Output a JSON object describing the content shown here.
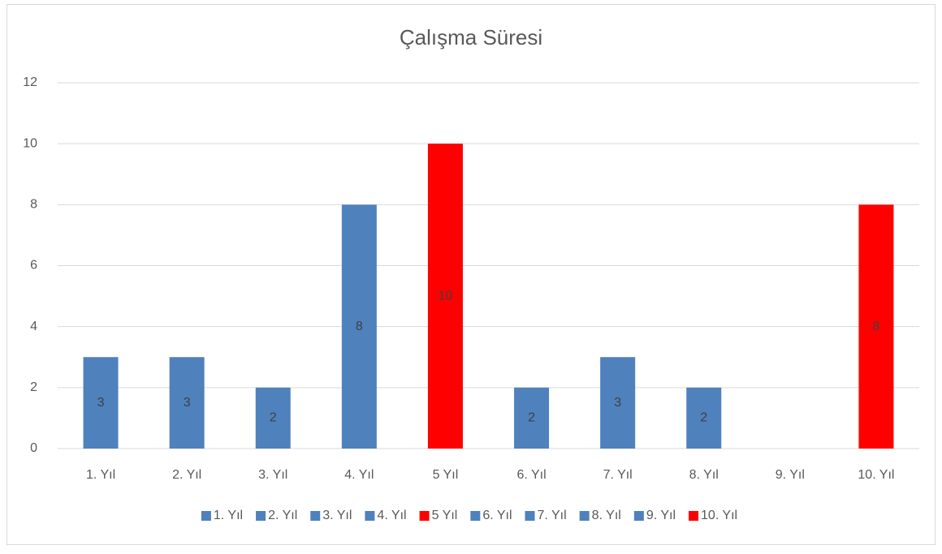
{
  "chart_data": {
    "type": "bar",
    "title": "Çalışma Süresi",
    "categories": [
      "1. Yıl",
      "2. Yıl",
      "3. Yıl",
      "4. Yıl",
      "5 Yıl",
      "6. Yıl",
      "7. Yıl",
      "8. Yıl",
      "9. Yıl",
      "10. Yıl"
    ],
    "values": [
      3,
      3,
      2,
      8,
      10,
      2,
      3,
      2,
      null,
      8
    ],
    "colors": [
      "#4f81bd",
      "#4f81bd",
      "#4f81bd",
      "#4f81bd",
      "#ff0000",
      "#4f81bd",
      "#4f81bd",
      "#4f81bd",
      "#4f81bd",
      "#ff0000"
    ],
    "ylim": [
      0,
      12
    ],
    "yticks": [
      0,
      2,
      4,
      6,
      8,
      10,
      12
    ],
    "grid": true,
    "legend": "bottom"
  }
}
